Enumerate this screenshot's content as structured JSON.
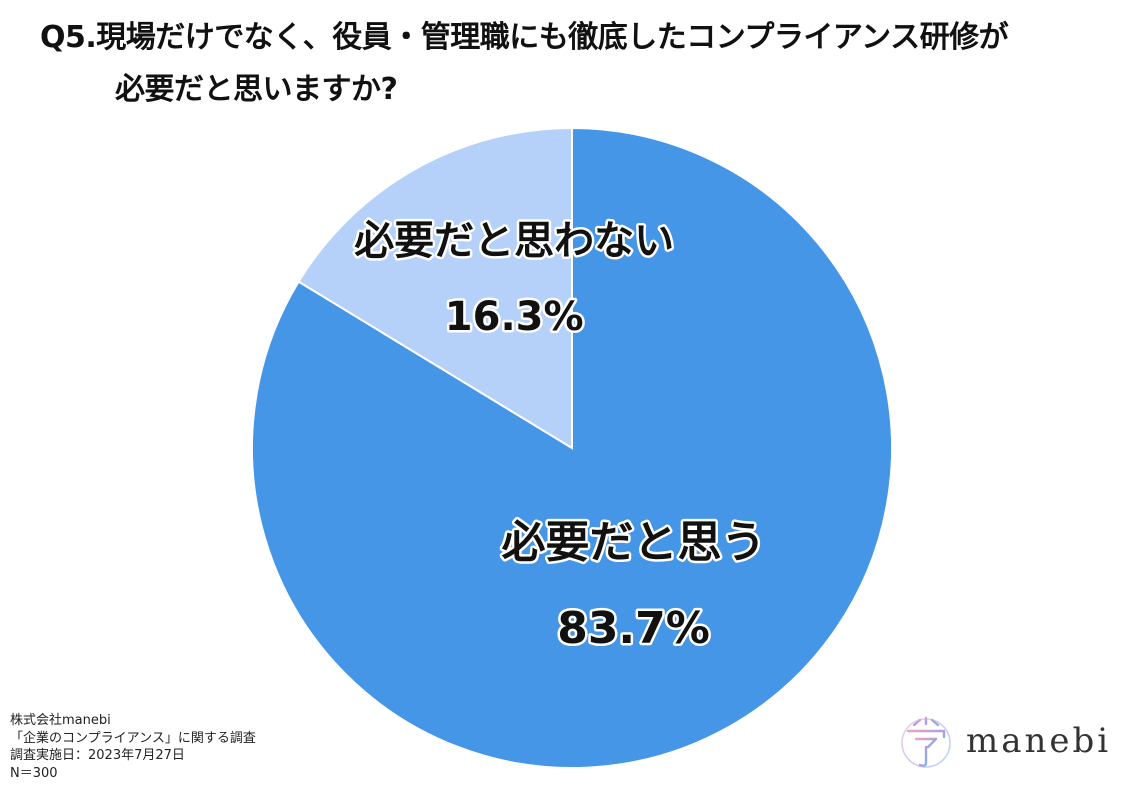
{
  "title": {
    "line1": "Q5.現場だけでなく、役員・管理職にも徹底したコンプライアンス研修が",
    "line2": "必要だと思いますか?"
  },
  "colors": {
    "primary_slice": "#4596e6",
    "secondary_slice": "#b5d1fa",
    "slice_border": "#ffffff"
  },
  "chart_data": {
    "type": "pie",
    "title": "Q5.現場だけでなく、役員・管理職にも徹底したコンプライアンス研修が必要だと思いますか?",
    "start_angle_deg": 0,
    "direction": "clockwise",
    "slices": [
      {
        "label": "必要だと思う",
        "value": 83.7,
        "value_label": "83.7%",
        "color": "#4596e6"
      },
      {
        "label": "必要だと思わない",
        "value": 16.3,
        "value_label": "16.3%",
        "color": "#b5d1fa"
      }
    ]
  },
  "footer": {
    "company": "株式会社manebi",
    "survey": "「企業のコンプライアンス」に関する調査",
    "date": "調査実施日：2023年7月27日",
    "n": "N＝300"
  },
  "logo": {
    "text": "manebi",
    "icon": "manebi-logo-icon"
  }
}
